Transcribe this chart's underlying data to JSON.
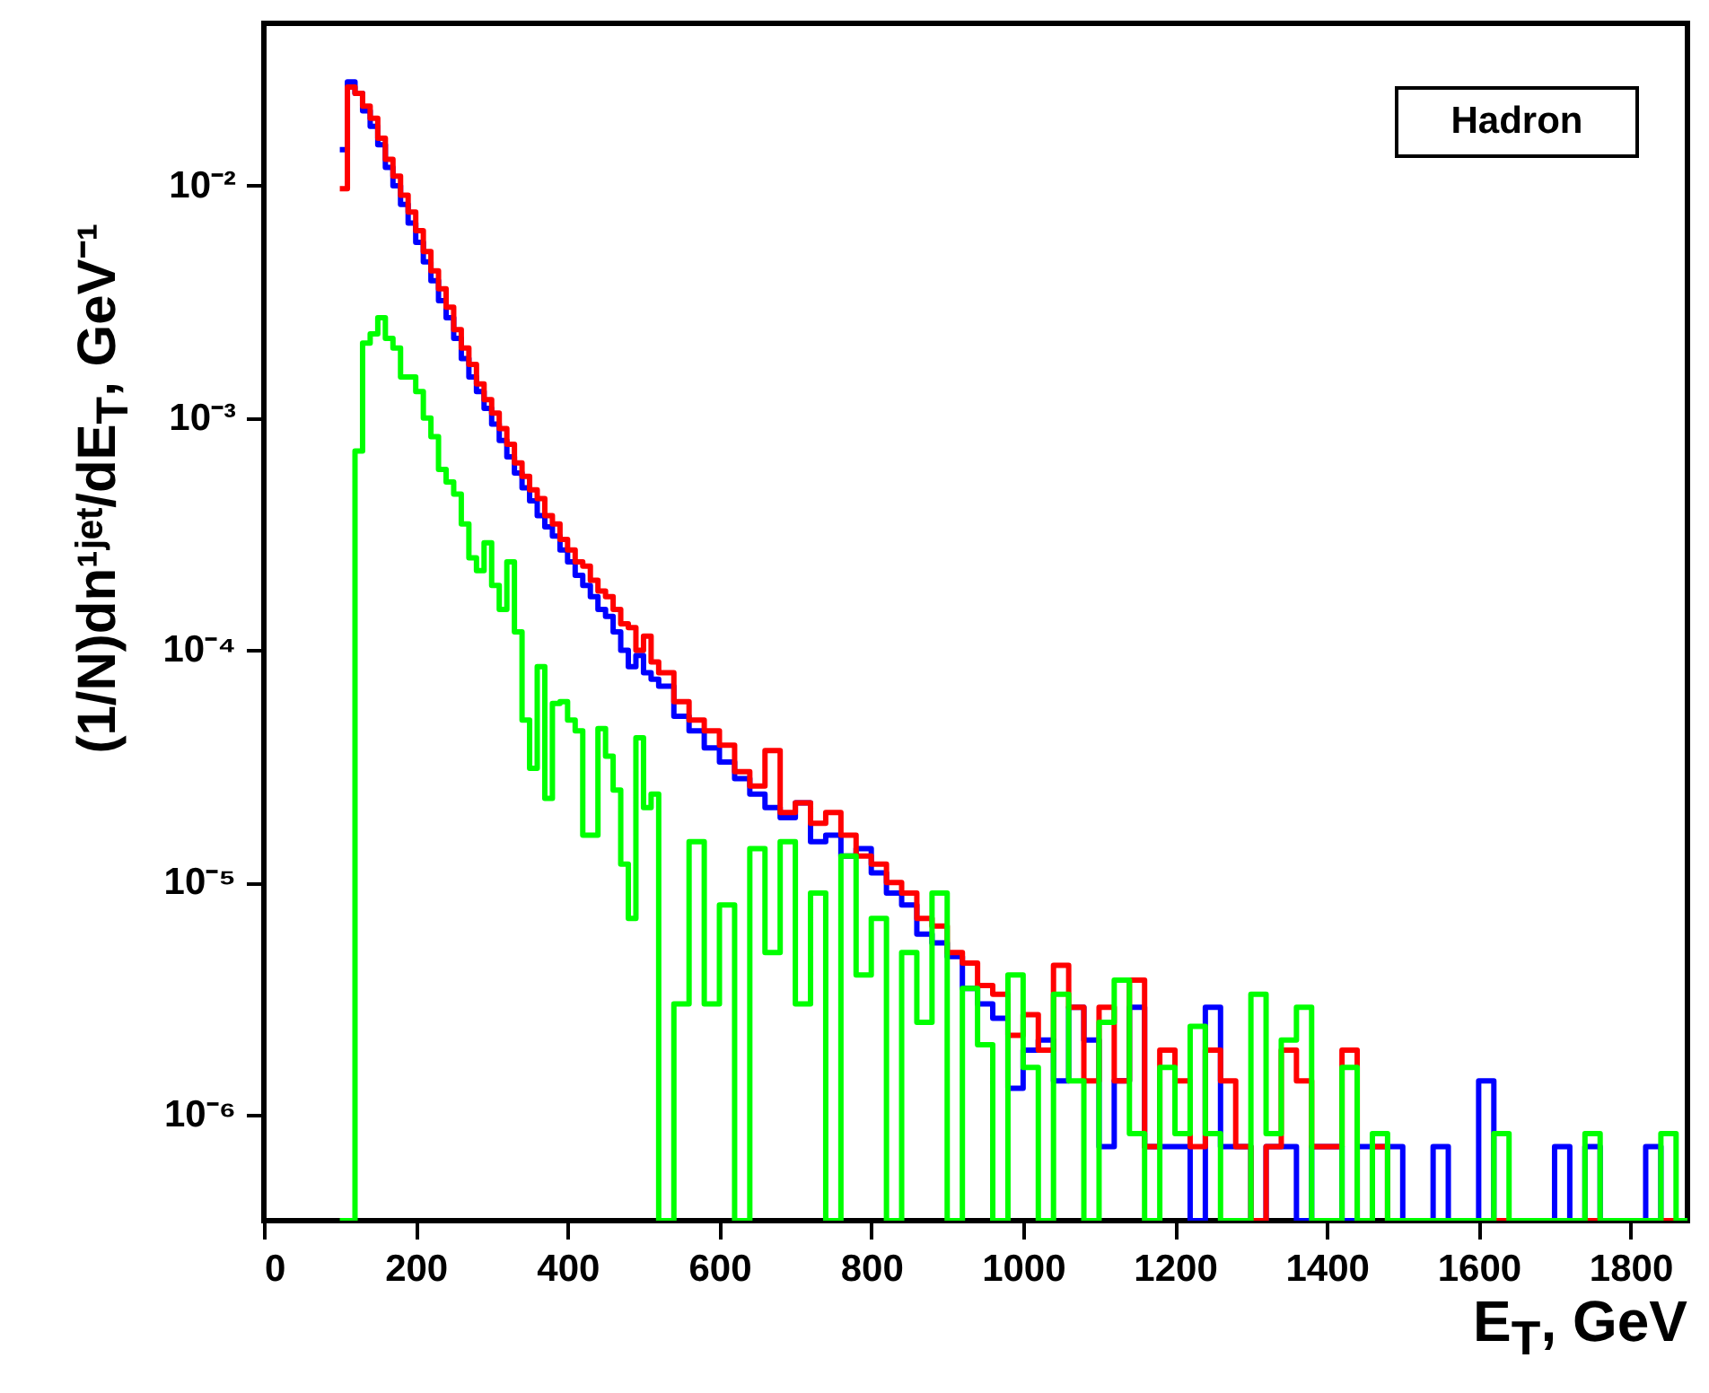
{
  "chart_data": {
    "type": "histogram",
    "title": "Hadron",
    "xlabel": "E$_{T}$, GeV",
    "ylabel": "(1/N)dn¹ʲᵉᵗ/dE$_{T}$, GeV⁻¹",
    "log": "y",
    "xlim": [
      0,
      1875
    ],
    "xticks": [
      0,
      200,
      400,
      600,
      800,
      1000,
      1200,
      1400,
      1600,
      1800
    ],
    "ylim": [
      3.5e-07,
      0.05
    ],
    "yticks": [
      {
        "value": 1e-06,
        "label": "10⁻⁶"
      },
      {
        "value": 1e-05,
        "label": "10⁻⁵"
      },
      {
        "value": 0.0001,
        "label": "10⁻⁴"
      },
      {
        "value": 0.001,
        "label": "10⁻³"
      },
      {
        "value": 0.01,
        "label": "10⁻²"
      }
    ],
    "bins": [
      100,
      110,
      120,
      130,
      140,
      150,
      160,
      170,
      180,
      190,
      200,
      210,
      220,
      230,
      240,
      250,
      260,
      270,
      280,
      290,
      300,
      310,
      320,
      330,
      340,
      350,
      360,
      370,
      380,
      390,
      400,
      410,
      420,
      430,
      440,
      450,
      460,
      470,
      480,
      490,
      500,
      510,
      520,
      540,
      560,
      580,
      600,
      620,
      640,
      660,
      680,
      700,
      720,
      740,
      760,
      780,
      800,
      820,
      840,
      860,
      880,
      900,
      920,
      940,
      960,
      980,
      1000,
      1020,
      1040,
      1060,
      1080,
      1100,
      1120,
      1140,
      1160,
      1180,
      1200,
      1220,
      1240,
      1260,
      1280,
      1300,
      1320,
      1340,
      1360,
      1380,
      1400,
      1420,
      1440,
      1460,
      1480,
      1500,
      1520,
      1540,
      1560,
      1580,
      1600,
      1620,
      1640,
      1660,
      1680,
      1700,
      1720,
      1740,
      1760,
      1780,
      1800,
      1820,
      1840,
      1860,
      1880
    ],
    "series": [
      {
        "color": "#0000ff",
        "values": [
          0.0143,
          0.028,
          0.025,
          0.021,
          0.018,
          0.015,
          0.012,
          0.01,
          0.0083,
          0.0069,
          0.0057,
          0.0047,
          0.0039,
          0.0032,
          0.0027,
          0.0022,
          0.0018,
          0.0015,
          0.0013,
          0.0011,
          0.00094,
          0.0008,
          0.00068,
          0.00058,
          0.0005,
          0.00044,
          0.00038,
          0.00034,
          0.00031,
          0.00027,
          0.00024,
          0.00021,
          0.00019,
          0.00017,
          0.00015,
          0.00014,
          0.00012,
          0.0001,
          8.5e-05,
          9.5e-05,
          8e-05,
          7.5e-05,
          7e-05,
          5.2e-05,
          4.5e-05,
          3.8e-05,
          3.3e-05,
          2.8e-05,
          2.4e-05,
          2.1e-05,
          1.9e-05,
          2.2e-05,
          1.5e-05,
          1.6e-05,
          1.3e-05,
          1.4e-05,
          1.1e-05,
          9e-06,
          8e-06,
          6e-06,
          5.5e-06,
          4.8e-06,
          3.5e-06,
          3e-06,
          2.6e-06,
          1.3e-06,
          1.9e-06,
          2.1e-06,
          1.4e-06,
          2.9e-06,
          2.1e-06,
          7.3e-07,
          1.4e-06,
          2.9e-06,
          7.3e-07,
          7.3e-07,
          7.3e-07,
          null,
          2.9e-06,
          7.3e-07,
          7.3e-07,
          null,
          7.3e-07,
          7.3e-07,
          null,
          7.3e-07,
          7.3e-07,
          null,
          7.3e-07,
          7.3e-07,
          7.3e-07,
          null,
          null,
          7.3e-07,
          null,
          null,
          1.4e-06,
          null,
          null,
          null,
          null,
          7.3e-07,
          null,
          7.3e-07,
          null,
          null,
          null,
          7.3e-07,
          null,
          null
        ]
      },
      {
        "color": "#ff0000",
        "values": [
          0.0097,
          0.0266,
          0.025,
          0.022,
          0.0195,
          0.016,
          0.013,
          0.011,
          0.0091,
          0.0077,
          0.0064,
          0.0052,
          0.0043,
          0.0036,
          0.003,
          0.0024,
          0.002,
          0.0017,
          0.0014,
          0.0012,
          0.00105,
          0.0009,
          0.00077,
          0.00064,
          0.00056,
          0.00049,
          0.00045,
          0.00038,
          0.00035,
          0.0003,
          0.00027,
          0.00024,
          0.00023,
          0.0002,
          0.00018,
          0.00017,
          0.00015,
          0.00013,
          0.000125,
          0.0001,
          0.000115,
          8.9e-05,
          8e-05,
          6e-05,
          5e-05,
          4.5e-05,
          3.9e-05,
          3e-05,
          2.6e-05,
          3.7e-05,
          2e-05,
          2.2e-05,
          1.8e-05,
          2e-05,
          1.6e-05,
          1.3e-05,
          1.2e-05,
          1e-05,
          9e-06,
          7e-06,
          6.5e-06,
          5e-06,
          4.5e-06,
          3.6e-06,
          3.3e-06,
          2.2e-06,
          2.7e-06,
          1.9e-06,
          4.4e-06,
          2.9e-06,
          1.4e-06,
          2.9e-06,
          1.4e-06,
          3.8e-06,
          7.3e-07,
          1.9e-06,
          1.4e-06,
          7.3e-07,
          1.9e-06,
          1.4e-06,
          7.3e-07,
          null,
          7.3e-07,
          1.9e-06,
          1.4e-06,
          7.3e-07,
          7.3e-07,
          1.9e-06,
          null,
          7.3e-07,
          null,
          null,
          null,
          null,
          null,
          null,
          null,
          null,
          null,
          null,
          null,
          null,
          null,
          null,
          null,
          null,
          null,
          null,
          null,
          null
        ]
      },
      {
        "color": "#00ff00",
        "values": [
          null,
          null,
          0.00072,
          0.0021,
          0.0023,
          0.0027,
          0.0022,
          0.002,
          0.0015,
          0.0015,
          0.0013,
          0.001,
          0.00083,
          0.0006,
          0.00053,
          0.00047,
          0.00035,
          0.00025,
          0.00022,
          0.00029,
          0.00019,
          0.00015,
          0.00024,
          0.00012,
          5e-05,
          3.1e-05,
          8.5e-05,
          2.3e-05,
          5.9e-05,
          6e-05,
          5e-05,
          4.5e-05,
          1.6e-05,
          1.6e-05,
          4.6e-05,
          3.5e-05,
          2.5e-05,
          1.2e-05,
          7e-06,
          4.2e-05,
          2.1e-05,
          2.4e-05,
          null,
          3e-06,
          1.5e-05,
          3e-06,
          8e-06,
          null,
          1.4e-05,
          5e-06,
          1.5e-05,
          3e-06,
          9e-06,
          null,
          1.3e-05,
          4e-06,
          7e-06,
          null,
          5e-06,
          2.5e-06,
          9e-06,
          null,
          3.5e-06,
          2e-06,
          null,
          4e-06,
          1.6e-06,
          null,
          3.3e-06,
          1.4e-06,
          null,
          2.5e-06,
          3.8e-06,
          8.3e-07,
          null,
          1.6e-06,
          8.3e-07,
          2.4e-06,
          8.3e-07,
          null,
          null,
          3.3e-06,
          8.3e-07,
          2.1e-06,
          2.9e-06,
          null,
          null,
          1.6e-06,
          null,
          8.3e-07,
          null,
          null,
          null,
          null,
          null,
          null,
          null,
          8.3e-07,
          null,
          null,
          null,
          null,
          null,
          8.3e-07,
          null,
          null,
          null,
          null,
          8.3e-07,
          null
        ]
      }
    ]
  }
}
